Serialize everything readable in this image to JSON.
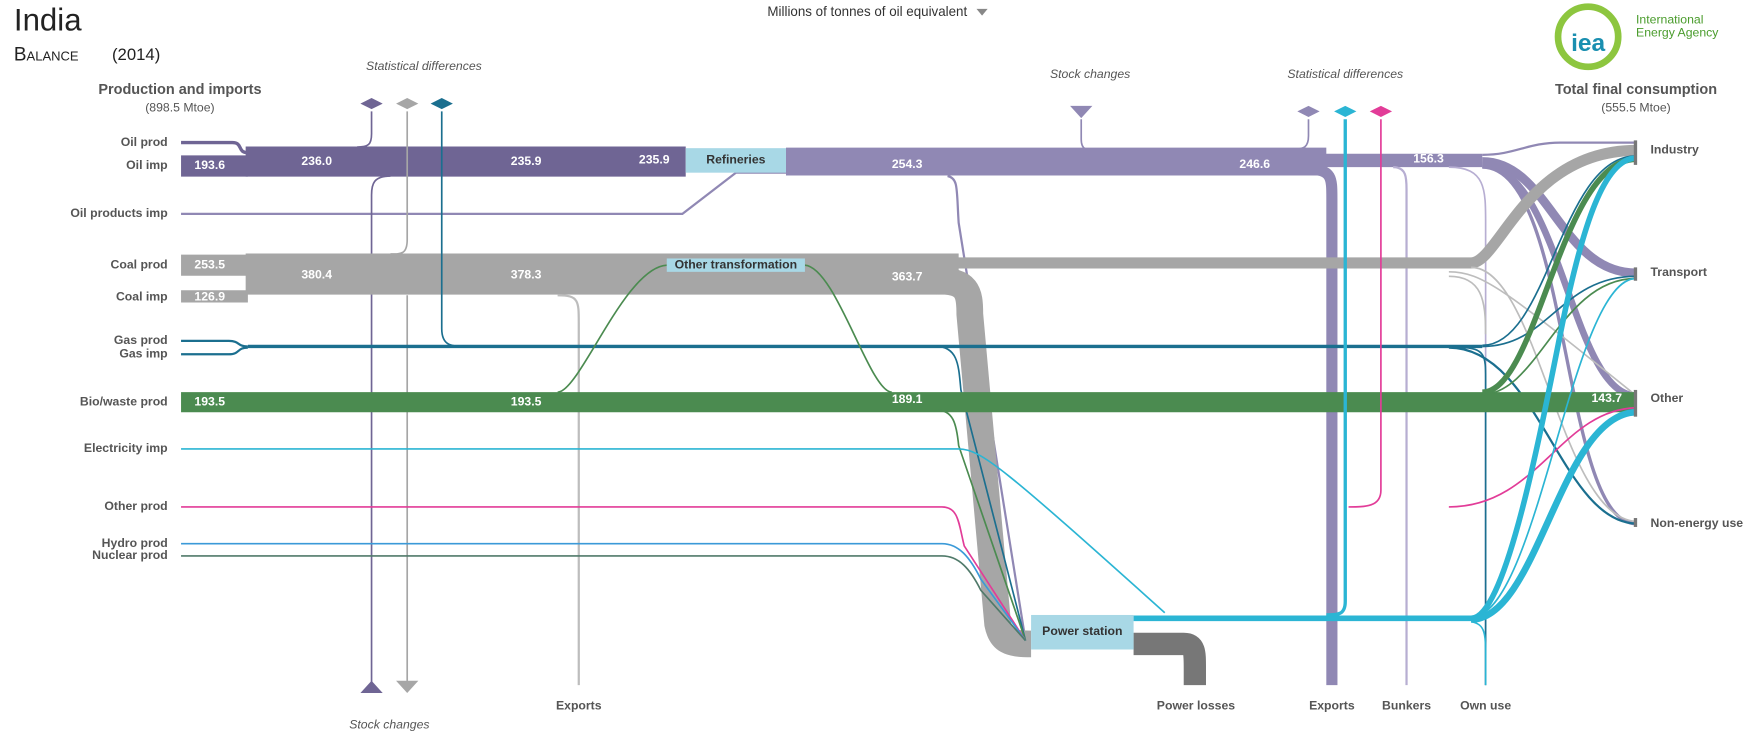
{
  "header": {
    "country": "India",
    "subtitle": "Balance",
    "year": "(2014)",
    "unit_selector": "Millions of tonnes of oil equivalent",
    "logo": {
      "mark": "iea",
      "name_line1": "International",
      "name_line2": "Energy Agency"
    }
  },
  "supply": {
    "title": "Production and imports",
    "total": "(898.5 Mtoe)",
    "items": [
      "Oil prod",
      "Oil imp",
      "Oil products imp",
      "Coal prod",
      "Coal imp",
      "Gas prod",
      "Gas imp",
      "Bio/waste prod",
      "Electricity imp",
      "Other prod",
      "Hydro prod",
      "Nuclear prod"
    ]
  },
  "final_consumption": {
    "title": "Total final consumption",
    "total": "(555.5 Mtoe)",
    "items": [
      "Industry",
      "Transport",
      "Other",
      "Non-energy use"
    ]
  },
  "transformation": [
    "Refineries",
    "Other transformation",
    "Power station"
  ],
  "top_labels": [
    "Statistical differences",
    "Stock  changes",
    "Statistical differences"
  ],
  "bottom_labels": [
    "Stock changes",
    "Exports",
    "Power losses",
    "Exports",
    "Bunkers",
    "Own use"
  ],
  "flow_labels": [
    "193.6",
    "236.0",
    "235.9",
    "235.9",
    "254.3",
    "246.6",
    "156.3",
    "253.5",
    "380.4",
    "378.3",
    "363.7",
    "126.9",
    "193.5",
    "193.5",
    "189.1",
    "143.7"
  ]
}
